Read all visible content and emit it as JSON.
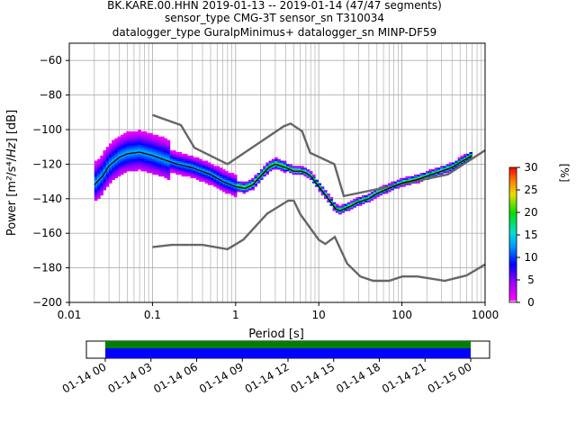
{
  "title": {
    "line1": "BK.KARE.00.HHN   2019-01-13 -- 2019-01-14  (47/47 segments)",
    "line2": "sensor_type CMG-3T sensor_sn T310034",
    "line3": "datalogger_type GuralpMinimus+ datalogger_sn MINP-DF59"
  },
  "chart_data": {
    "type": "heatmap",
    "title": "BK.KARE.00.HHN   2019-01-13 -- 2019-01-14  (47/47 segments)",
    "xlabel": "Period [s]",
    "ylabel": "Power [m²/s⁴/Hz] [dB]",
    "xscale": "log",
    "xlim": [
      0.01,
      1000
    ],
    "ylim": [
      -200,
      -50
    ],
    "xticks": [
      0.01,
      0.1,
      1,
      10,
      100,
      1000
    ],
    "xtick_labels": [
      "0.01",
      "0.1",
      "1",
      "10",
      "100",
      "1000"
    ],
    "yticks": [
      -200,
      -180,
      -160,
      -140,
      -120,
      -100,
      -80,
      -60
    ],
    "ytick_labels": [
      "−200",
      "−180",
      "−160",
      "−140",
      "−120",
      "−100",
      "−80",
      "−60"
    ],
    "grid": true,
    "colorbar": {
      "label": "[%]",
      "range": [
        0,
        30
      ],
      "ticks": [
        0,
        5,
        10,
        15,
        20,
        25,
        30
      ]
    },
    "mode_curve": {
      "period": [
        0.02,
        0.025,
        0.03,
        0.04,
        0.05,
        0.07,
        0.1,
        0.15,
        0.2,
        0.3,
        0.5,
        0.7,
        1,
        1.3,
        1.6,
        2,
        2.5,
        3,
        4,
        5,
        6,
        7,
        8,
        10,
        13,
        16,
        18,
        20,
        25,
        30,
        40,
        50,
        70,
        100,
        150,
        200,
        300,
        400,
        500,
        700
      ],
      "db": [
        -132,
        -127,
        -121,
        -116,
        -114,
        -113,
        -115,
        -118,
        -120,
        -122,
        -126,
        -130,
        -133,
        -134,
        -132,
        -127,
        -122,
        -120,
        -122,
        -124,
        -124,
        -125,
        -127,
        -133,
        -140,
        -146,
        -147,
        -146,
        -144,
        -142,
        -140,
        -137,
        -134,
        -131,
        -129,
        -127,
        -124,
        -122,
        -119,
        -115
      ]
    },
    "noise_models": {
      "nhnm": {
        "period": [
          0.1,
          0.22,
          0.32,
          0.8,
          3.8,
          4.6,
          6.3,
          7.9,
          15.4,
          20,
          354.8,
          1000
        ],
        "db": [
          -91.5,
          -97.4,
          -110.5,
          -120,
          -98,
          -96.5,
          -101,
          -113.5,
          -120,
          -138.5,
          -126,
          -112
        ]
      },
      "nlnm": {
        "period": [
          0.1,
          0.17,
          0.4,
          0.8,
          1.24,
          2.4,
          4.3,
          5,
          6,
          10,
          12,
          15.6,
          21.9,
          31.6,
          45,
          70,
          101,
          154,
          328,
          600,
          1000
        ],
        "db": [
          -168,
          -166.7,
          -166.7,
          -169.2,
          -163.7,
          -148.6,
          -141.1,
          -141.1,
          -149,
          -163.8,
          -166.2,
          -162.1,
          -177.5,
          -185,
          -187.5,
          -187.5,
          -185,
          -185,
          -187.5,
          -184.4,
          -178
        ]
      }
    }
  },
  "timeline": {
    "tick_labels": [
      "01-14 00",
      "01-14 03",
      "01-14 06",
      "01-14 09",
      "01-14 12",
      "01-14 15",
      "01-14 18",
      "01-14 21",
      "01-15 00"
    ],
    "coverage_fraction": [
      0,
      1
    ],
    "colors": {
      "data": "#0000ff",
      "gaps": "#008000"
    }
  }
}
